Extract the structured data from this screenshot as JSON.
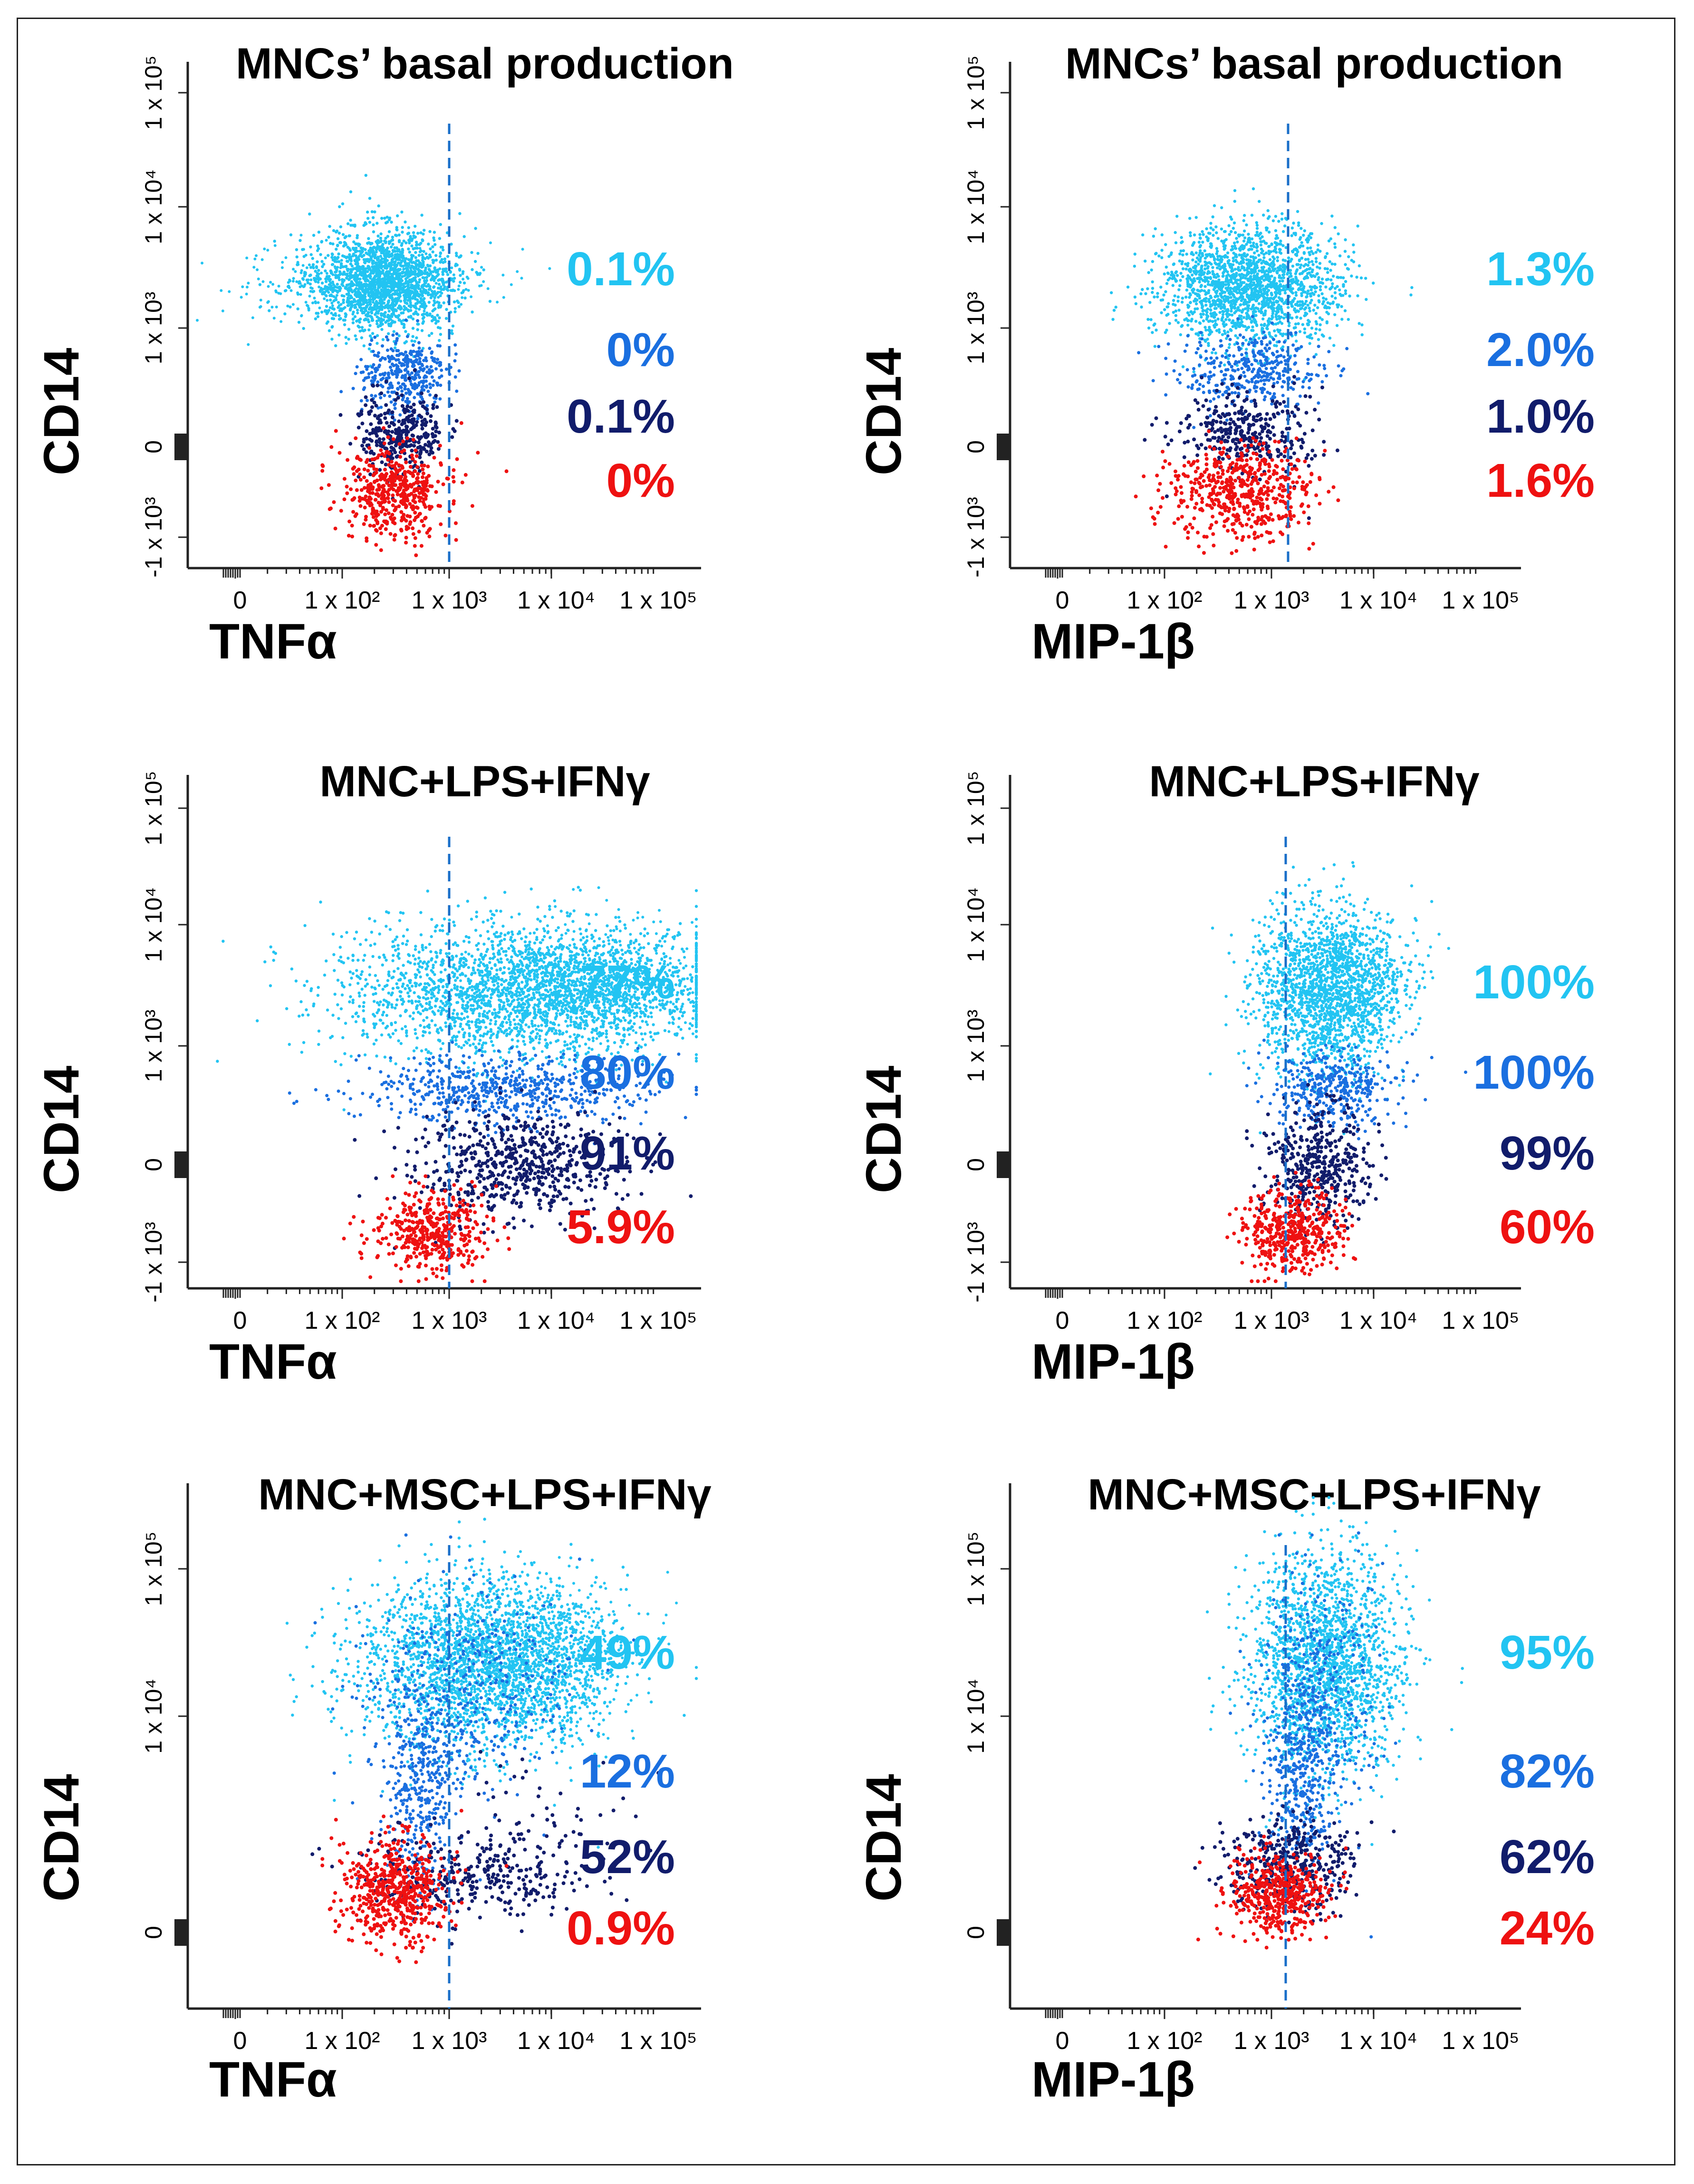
{
  "colors": {
    "light": "#22c4f2",
    "mid": "#1a6fe0",
    "dark": "#111c6b",
    "red": "#ee1111",
    "gate": "#1a6fc9",
    "axis": "#222222"
  },
  "figure": {
    "x_tick_labels": [
      "0",
      "1 x 10²",
      "1 x 10³",
      "1 x 10⁴",
      "1 x 10⁵"
    ],
    "y_tick_labels_std": [
      "-1 x 10³",
      "0",
      "1 x 10³",
      "1 x 10⁴",
      "1 x 10⁵"
    ],
    "y_tick_labels_row3": [
      "0",
      "1 x 10⁴",
      "1 x 10⁵"
    ]
  },
  "chart_data": [
    {
      "type": "scatter",
      "title": "MNCs’ basal production",
      "xlabel": "TNFα",
      "ylabel": "CD14",
      "gate_x": "1 x 10³",
      "subsets": [
        {
          "name": "light",
          "percent": "0.1%"
        },
        {
          "name": "mid",
          "percent": "0%"
        },
        {
          "name": "dark",
          "percent": "0.1%"
        },
        {
          "name": "red",
          "percent": "0%"
        }
      ]
    },
    {
      "type": "scatter",
      "title": "MNCs’ basal production",
      "xlabel": "MIP-1β",
      "ylabel": "CD14",
      "gate_x": "1 x 10³",
      "subsets": [
        {
          "name": "light",
          "percent": "1.3%"
        },
        {
          "name": "mid",
          "percent": "2.0%"
        },
        {
          "name": "dark",
          "percent": "1.0%"
        },
        {
          "name": "red",
          "percent": "1.6%"
        }
      ]
    },
    {
      "type": "scatter",
      "title": "MNC+LPS+IFNγ",
      "xlabel": "TNFα",
      "ylabel": "CD14",
      "gate_x": "1 x 10³",
      "subsets": [
        {
          "name": "light",
          "percent": "77%"
        },
        {
          "name": "mid",
          "percent": "80%"
        },
        {
          "name": "dark",
          "percent": "91%"
        },
        {
          "name": "red",
          "percent": "5.9%"
        }
      ]
    },
    {
      "type": "scatter",
      "title": "MNC+LPS+IFNγ",
      "xlabel": "MIP-1β",
      "ylabel": "CD14",
      "gate_x": "1 x 10³",
      "subsets": [
        {
          "name": "light",
          "percent": "100%"
        },
        {
          "name": "mid",
          "percent": "100%"
        },
        {
          "name": "dark",
          "percent": "99%"
        },
        {
          "name": "red",
          "percent": "60%"
        }
      ]
    },
    {
      "type": "scatter",
      "title": "MNC+MSC+LPS+IFNγ",
      "xlabel": "TNFα",
      "ylabel": "CD14",
      "gate_x": "1 x 10³",
      "subsets": [
        {
          "name": "light",
          "percent": "49%"
        },
        {
          "name": "mid",
          "percent": "12%"
        },
        {
          "name": "dark",
          "percent": "52%"
        },
        {
          "name": "red",
          "percent": "0.9%"
        }
      ]
    },
    {
      "type": "scatter",
      "title": "MNC+MSC+LPS+IFNγ",
      "xlabel": "MIP-1β",
      "ylabel": "CD14",
      "gate_x": "1 x 10³",
      "subsets": [
        {
          "name": "light",
          "percent": "95%"
        },
        {
          "name": "mid",
          "percent": "82%"
        },
        {
          "name": "dark",
          "percent": "62%"
        },
        {
          "name": "red",
          "percent": "24%"
        }
      ]
    }
  ]
}
